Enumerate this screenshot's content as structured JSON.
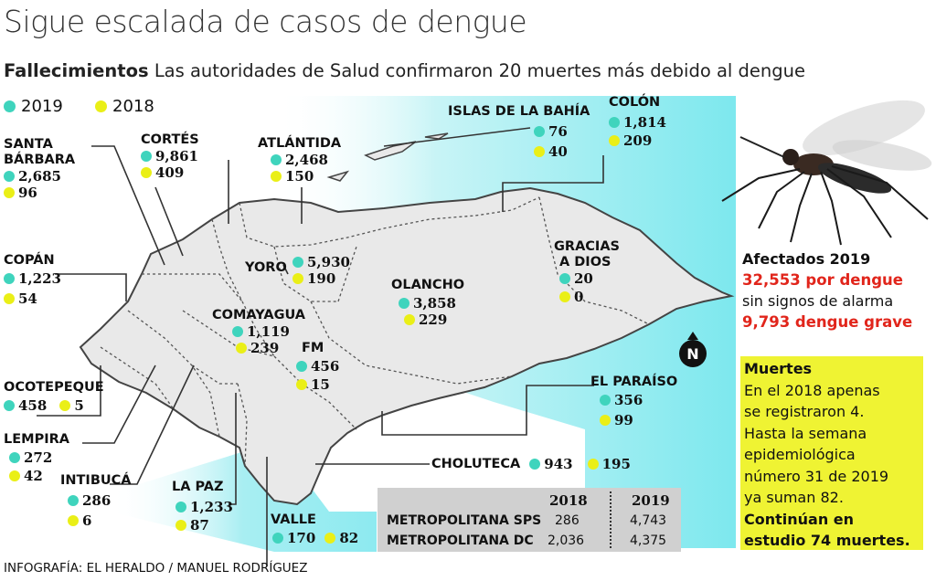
{
  "title": "Sigue escalada de casos de dengue",
  "subtitle": {
    "bold": "Fallecimientos",
    "text": "Las autoridades de Salud confirmaron 20 muertes más debido al dengue"
  },
  "legend": {
    "y2019": {
      "label": "2019",
      "color": "#3fd4bd"
    },
    "y2018": {
      "label": "2018",
      "color": "#eaef17"
    }
  },
  "departments": [
    {
      "name_lines": [
        "SANTA",
        "BÁRBARA"
      ],
      "v2019": "2,685",
      "v2018": "96"
    },
    {
      "name_lines": [
        "CORTÉS"
      ],
      "v2019": "9,861",
      "v2018": "409"
    },
    {
      "name_lines": [
        "ATLÁNTIDA"
      ],
      "v2019": "2,468",
      "v2018": "150"
    },
    {
      "name_lines": [
        "ISLAS DE LA BAHÍA"
      ],
      "v2019": "76",
      "v2018": "40"
    },
    {
      "name_lines": [
        "COLÓN"
      ],
      "v2019": "1,814",
      "v2018": "209"
    },
    {
      "name_lines": [
        "COPÁN"
      ],
      "v2019": "1,223",
      "v2018": "54"
    },
    {
      "name_lines": [
        "YORO"
      ],
      "v2019": "5,930",
      "v2018": "190"
    },
    {
      "name_lines": [
        "GRACIAS",
        "A DIOS"
      ],
      "v2019": "20",
      "v2018": "0"
    },
    {
      "name_lines": [
        "OLANCHO"
      ],
      "v2019": "3,858",
      "v2018": "229"
    },
    {
      "name_lines": [
        "COMAYAGUA"
      ],
      "v2019": "1,119",
      "v2018": "239"
    },
    {
      "name_lines": [
        "FM"
      ],
      "v2019": "456",
      "v2018": "15"
    },
    {
      "name_lines": [
        "OCOTEPEQUE"
      ],
      "v2019": "458",
      "v2018": "5"
    },
    {
      "name_lines": [
        "EL PARAÍSO"
      ],
      "v2019": "356",
      "v2018": "99"
    },
    {
      "name_lines": [
        "LEMPIRA"
      ],
      "v2019": "272",
      "v2018": "42"
    },
    {
      "name_lines": [
        "CHOLUTECA"
      ],
      "v2019": "943",
      "v2018": "195"
    },
    {
      "name_lines": [
        "INTIBUCÁ"
      ],
      "v2019": "286",
      "v2018": "6"
    },
    {
      "name_lines": [
        "LA PAZ"
      ],
      "v2019": "1,233",
      "v2018": "87"
    },
    {
      "name_lines": [
        "VALLE"
      ],
      "v2019": "170",
      "v2018": "82"
    }
  ],
  "compass": {
    "label": "N"
  },
  "affected": {
    "heading": "Afectados 2019",
    "dengue_count": "32,553 por dengue",
    "no_alarm": "sin signos de alarma",
    "severe": "9,793 dengue grave"
  },
  "deaths_box": {
    "heading": "Muertes",
    "lines": [
      "En el 2018 apenas",
      "se registraron 4.",
      "Hasta la semana",
      "epidemiológica",
      "número 31 de 2019",
      "ya suman 82."
    ],
    "bold_lines": [
      "Continúan en",
      "estudio 74 muertes."
    ]
  },
  "metro_table": {
    "headers": [
      "2018",
      "2019"
    ],
    "rows": [
      {
        "name": "METROPOLITANA SPS",
        "v2018": "286",
        "v2019": "4,743"
      },
      {
        "name": "METROPOLITANA DC",
        "v2018": "2,036",
        "v2019": "4,375"
      }
    ]
  },
  "credit": "INFOGRAFÍA: EL HERALDO / MANUEL RODRÍGUEZ"
}
